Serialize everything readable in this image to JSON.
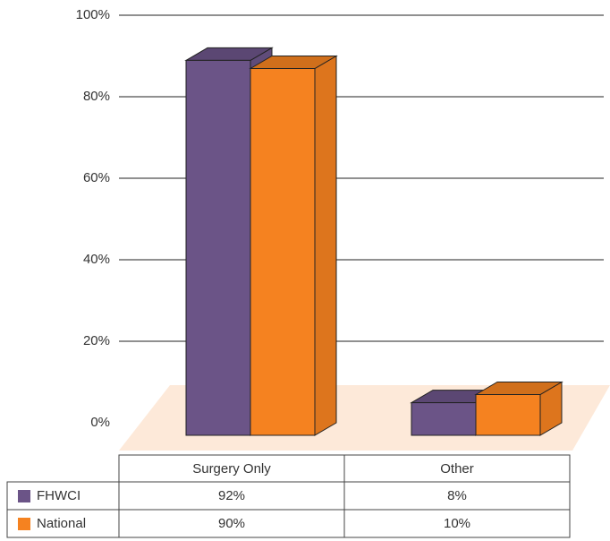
{
  "chart_data": {
    "type": "bar3d",
    "categories": [
      "Surgery Only",
      "Other"
    ],
    "series": [
      {
        "name": "FHWCI",
        "color": "#6b5487",
        "values": [
          92,
          8
        ],
        "value_labels": [
          "92%",
          "8%"
        ]
      },
      {
        "name": "National",
        "color": "#f58220",
        "values": [
          90,
          10
        ],
        "value_labels": [
          "90%",
          "10%"
        ]
      }
    ],
    "ylim": [
      0,
      100
    ],
    "yticks": [
      {
        "value": 0,
        "label": "0%"
      },
      {
        "value": 20,
        "label": "20%"
      },
      {
        "value": 40,
        "label": "40%"
      },
      {
        "value": 60,
        "label": "60%"
      },
      {
        "value": 80,
        "label": "80%"
      },
      {
        "value": 100,
        "label": "100%"
      }
    ],
    "grid": true
  }
}
